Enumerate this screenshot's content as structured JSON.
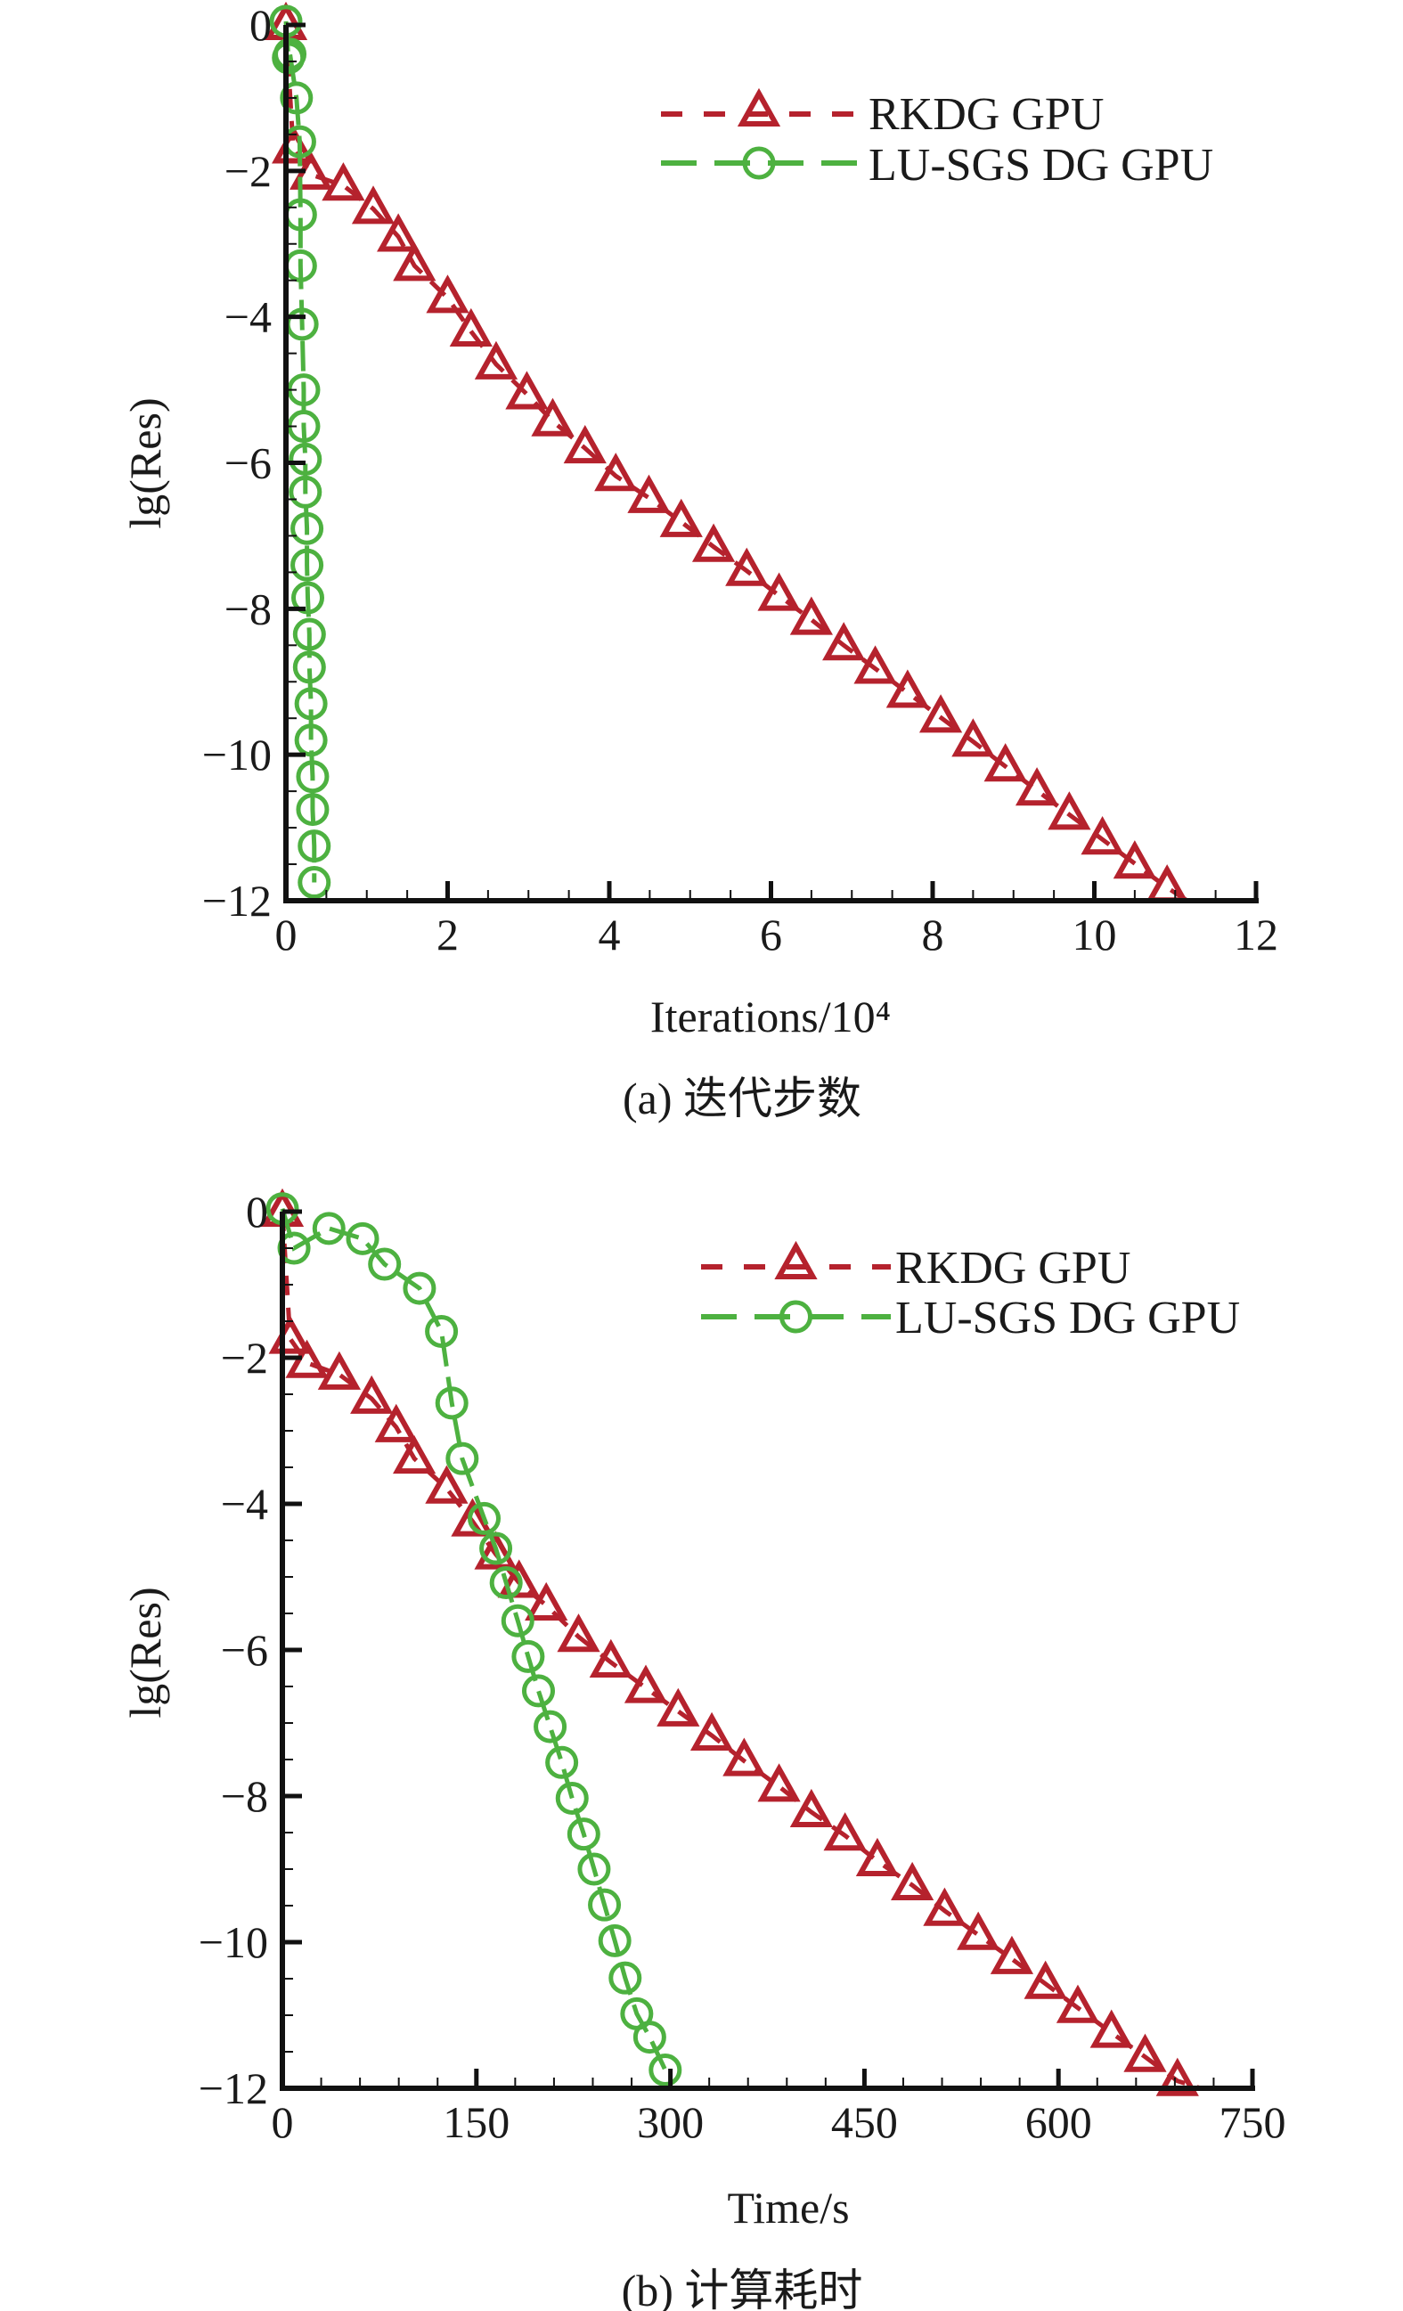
{
  "colors": {
    "rkdg": "#b5222d",
    "lusgs": "#4db140",
    "axis": "#111111"
  },
  "chart_data": [
    {
      "type": "line",
      "caption": "(a) 迭代步数",
      "xlabel": "Iterations/10⁴",
      "ylabel": "lg(Res)",
      "xlim": [
        0,
        12
      ],
      "ylim": [
        -12,
        0
      ],
      "xticks": [
        "0",
        "2",
        "4",
        "6",
        "8",
        "10",
        "12"
      ],
      "yticks": [
        "0",
        "−2",
        "−4",
        "−6",
        "−8",
        "−10",
        "−12"
      ],
      "grid": false,
      "legend_position": "top-right",
      "series": [
        {
          "name": "RKDG GPU",
          "marker": "triangle",
          "line": "dashed",
          "color_key": "rkdg",
          "x": [
            0,
            0.09,
            0.31,
            0.71,
            1.08,
            1.39,
            1.59,
            2.0,
            2.29,
            2.6,
            2.98,
            3.3,
            3.7,
            4.08,
            4.49,
            4.89,
            5.29,
            5.7,
            6.1,
            6.5,
            6.9,
            7.29,
            7.69,
            8.1,
            8.5,
            8.9,
            9.29,
            9.69,
            10.1,
            10.5,
            10.9
          ],
          "y": [
            0,
            -1.69,
            -2.05,
            -2.2,
            -2.52,
            -2.9,
            -3.3,
            -3.74,
            -4.2,
            -4.65,
            -5.06,
            -5.43,
            -5.8,
            -6.18,
            -6.48,
            -6.81,
            -7.15,
            -7.48,
            -7.82,
            -8.15,
            -8.5,
            -8.82,
            -9.15,
            -9.49,
            -9.82,
            -10.16,
            -10.49,
            -10.82,
            -11.16,
            -11.49,
            -11.82
          ],
          "line_end": [
            11.15,
            -12
          ]
        },
        {
          "name": "LU-SGS DG GPU",
          "marker": "circle",
          "line": "long-dashed",
          "color_key": "lusgs",
          "x": [
            0,
            0.03,
            0.05,
            0.13,
            0.17,
            0.18,
            0.18,
            0.2,
            0.22,
            0.22,
            0.24,
            0.24,
            0.26,
            0.26,
            0.27,
            0.29,
            0.29,
            0.31,
            0.31,
            0.33,
            0.33,
            0.35,
            0.35
          ],
          "y": [
            0.05,
            -0.45,
            -0.4,
            -1.0,
            -1.6,
            -2.6,
            -3.3,
            -4.1,
            -5.0,
            -5.5,
            -5.95,
            -6.4,
            -6.9,
            -7.4,
            -7.85,
            -8.35,
            -8.8,
            -9.3,
            -9.8,
            -10.3,
            -10.75,
            -11.25,
            -11.75
          ]
        }
      ]
    },
    {
      "type": "line",
      "caption": "(b) 计算耗时",
      "xlabel": "Time/s",
      "ylabel": "lg(Res)",
      "xlim": [
        0,
        750
      ],
      "ylim": [
        -12,
        0
      ],
      "xticks": [
        "0",
        "150",
        "300",
        "450",
        "600",
        "750"
      ],
      "yticks": [
        "0",
        "−2",
        "−4",
        "−6",
        "−8",
        "−10",
        "−12"
      ],
      "grid": false,
      "legend_position": "top-right",
      "series": [
        {
          "name": "RKDG GPU",
          "marker": "triangle",
          "line": "dashed",
          "color_key": "rkdg",
          "x": [
            0,
            6,
            19,
            44,
            69,
            88,
            102,
            127,
            147,
            165,
            183,
            204,
            229,
            254,
            281,
            306,
            332,
            357,
            384,
            409,
            435,
            460,
            487,
            512,
            538,
            564,
            590,
            615,
            641,
            667,
            692
          ],
          "y": [
            0,
            -1.74,
            -2.07,
            -2.23,
            -2.56,
            -2.95,
            -3.38,
            -3.79,
            -4.24,
            -4.69,
            -5.08,
            -5.39,
            -5.82,
            -6.17,
            -6.52,
            -6.84,
            -7.17,
            -7.52,
            -7.87,
            -8.22,
            -8.54,
            -8.89,
            -9.22,
            -9.57,
            -9.9,
            -10.23,
            -10.57,
            -10.9,
            -11.24,
            -11.57,
            -11.9
          ],
          "line_end": [
            710,
            -12
          ]
        },
        {
          "name": "LU-SGS DG GPU",
          "marker": "circle",
          "line": "long-dashed",
          "color_key": "lusgs",
          "x": [
            0,
            9,
            36,
            62,
            79,
            106,
            123,
            131,
            139,
            156,
            165,
            173,
            182,
            190,
            198,
            207,
            216,
            224,
            233,
            241,
            249,
            257,
            265,
            274,
            284,
            296
          ],
          "y": [
            0.04,
            -0.5,
            -0.23,
            -0.37,
            -0.72,
            -1.05,
            -1.64,
            -2.62,
            -3.38,
            -4.2,
            -4.61,
            -5.08,
            -5.6,
            -6.09,
            -6.56,
            -7.05,
            -7.54,
            -8.03,
            -8.52,
            -9.0,
            -9.49,
            -9.98,
            -10.49,
            -10.98,
            -11.3,
            -11.75
          ]
        }
      ]
    }
  ]
}
